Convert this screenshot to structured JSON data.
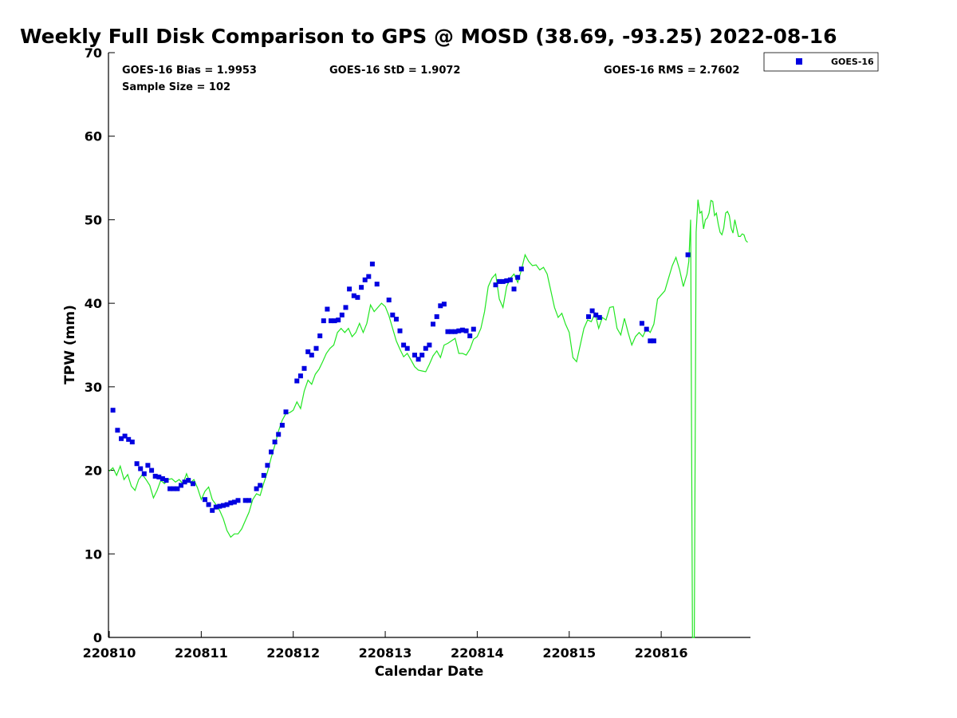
{
  "chart_data": {
    "type": "scatter",
    "title": "Weekly Full Disk Comparison to GPS @ MOSD (38.69, -93.25) 2022-08-16",
    "xlabel": "Calendar Date",
    "ylabel": "TPW (mm)",
    "xlim": [
      0,
      6.97
    ],
    "ylim": [
      0,
      70
    ],
    "x_tick_values": [
      0,
      1,
      2,
      3,
      4,
      5,
      6
    ],
    "x_tick_labels": [
      "220810",
      "220811",
      "220812",
      "220813",
      "220814",
      "220815",
      "220816"
    ],
    "y_ticks": [
      0,
      10,
      20,
      30,
      40,
      50,
      60,
      70
    ],
    "y_tick_labels": [
      "0",
      "10",
      "20",
      "30",
      "40",
      "50",
      "60",
      "70"
    ],
    "stats": {
      "bias": "GOES-16 Bias = 1.9953",
      "std": "GOES-16 StD = 1.9072",
      "rms": "GOES-16 RMS = 2.7602",
      "sample": "Sample Size = 102"
    },
    "legend": {
      "label": "GOES-16",
      "position": "top-right-outside"
    },
    "colors": {
      "goes": "#0000e0",
      "gps": "#22e622",
      "axis": "#000000"
    },
    "series": [
      {
        "name": "GOES-16",
        "style": "markers",
        "points": [
          [
            0.04,
            27.2
          ],
          [
            0.09,
            24.8
          ],
          [
            0.13,
            23.8
          ],
          [
            0.17,
            24.1
          ],
          [
            0.21,
            23.7
          ],
          [
            0.25,
            23.4
          ],
          [
            0.3,
            20.8
          ],
          [
            0.34,
            20.2
          ],
          [
            0.38,
            19.6
          ],
          [
            0.42,
            20.6
          ],
          [
            0.46,
            20.0
          ],
          [
            0.5,
            19.3
          ],
          [
            0.54,
            19.2
          ],
          [
            0.58,
            19.0
          ],
          [
            0.62,
            18.8
          ],
          [
            0.66,
            17.8
          ],
          [
            0.7,
            17.8
          ],
          [
            0.74,
            17.8
          ],
          [
            0.78,
            18.2
          ],
          [
            0.82,
            18.6
          ],
          [
            0.86,
            18.8
          ],
          [
            0.91,
            18.4
          ],
          [
            1.04,
            16.5
          ],
          [
            1.08,
            15.9
          ],
          [
            1.12,
            15.2
          ],
          [
            1.16,
            15.6
          ],
          [
            1.2,
            15.7
          ],
          [
            1.24,
            15.8
          ],
          [
            1.28,
            15.9
          ],
          [
            1.32,
            16.1
          ],
          [
            1.36,
            16.2
          ],
          [
            1.4,
            16.4
          ],
          [
            1.48,
            16.4
          ],
          [
            1.52,
            16.4
          ],
          [
            1.6,
            17.8
          ],
          [
            1.64,
            18.2
          ],
          [
            1.68,
            19.4
          ],
          [
            1.72,
            20.6
          ],
          [
            1.76,
            22.2
          ],
          [
            1.8,
            23.4
          ],
          [
            1.84,
            24.3
          ],
          [
            1.88,
            25.4
          ],
          [
            1.92,
            27.0
          ],
          [
            2.04,
            30.7
          ],
          [
            2.08,
            31.3
          ],
          [
            2.12,
            32.2
          ],
          [
            2.16,
            34.2
          ],
          [
            2.2,
            33.8
          ],
          [
            2.25,
            34.6
          ],
          [
            2.29,
            36.1
          ],
          [
            2.33,
            37.9
          ],
          [
            2.37,
            39.3
          ],
          [
            2.41,
            37.9
          ],
          [
            2.45,
            37.9
          ],
          [
            2.49,
            38.0
          ],
          [
            2.53,
            38.6
          ],
          [
            2.57,
            39.5
          ],
          [
            2.61,
            41.7
          ],
          [
            2.66,
            40.9
          ],
          [
            2.7,
            40.7
          ],
          [
            2.74,
            41.9
          ],
          [
            2.78,
            42.8
          ],
          [
            2.82,
            43.2
          ],
          [
            2.86,
            44.7
          ],
          [
            2.91,
            42.3
          ],
          [
            3.04,
            40.4
          ],
          [
            3.08,
            38.6
          ],
          [
            3.12,
            38.1
          ],
          [
            3.16,
            36.7
          ],
          [
            3.2,
            35.0
          ],
          [
            3.24,
            34.6
          ],
          [
            3.32,
            33.8
          ],
          [
            3.36,
            33.3
          ],
          [
            3.4,
            33.8
          ],
          [
            3.44,
            34.6
          ],
          [
            3.48,
            35.0
          ],
          [
            3.52,
            37.5
          ],
          [
            3.56,
            38.4
          ],
          [
            3.6,
            39.7
          ],
          [
            3.64,
            39.9
          ],
          [
            3.68,
            36.6
          ],
          [
            3.72,
            36.6
          ],
          [
            3.76,
            36.6
          ],
          [
            3.8,
            36.7
          ],
          [
            3.84,
            36.8
          ],
          [
            3.88,
            36.7
          ],
          [
            3.92,
            36.1
          ],
          [
            3.96,
            36.9
          ],
          [
            4.2,
            42.2
          ],
          [
            4.24,
            42.6
          ],
          [
            4.28,
            42.6
          ],
          [
            4.32,
            42.7
          ],
          [
            4.36,
            42.8
          ],
          [
            4.4,
            41.7
          ],
          [
            4.44,
            43.1
          ],
          [
            4.48,
            44.1
          ],
          [
            5.21,
            38.4
          ],
          [
            5.25,
            39.1
          ],
          [
            5.29,
            38.6
          ],
          [
            5.33,
            38.3
          ],
          [
            5.79,
            37.6
          ],
          [
            5.84,
            36.9
          ],
          [
            5.88,
            35.5
          ],
          [
            5.92,
            35.5
          ],
          [
            6.29,
            45.8
          ]
        ]
      },
      {
        "name": "GPS",
        "style": "line",
        "points": [
          [
            0.0,
            19.9
          ],
          [
            0.04,
            20.3
          ],
          [
            0.08,
            19.4
          ],
          [
            0.12,
            20.5
          ],
          [
            0.16,
            18.9
          ],
          [
            0.2,
            19.5
          ],
          [
            0.24,
            18.1
          ],
          [
            0.28,
            17.6
          ],
          [
            0.32,
            18.9
          ],
          [
            0.36,
            19.5
          ],
          [
            0.4,
            18.9
          ],
          [
            0.44,
            18.2
          ],
          [
            0.48,
            16.7
          ],
          [
            0.52,
            17.6
          ],
          [
            0.56,
            18.8
          ],
          [
            0.6,
            18.4
          ],
          [
            0.64,
            18.9
          ],
          [
            0.68,
            19.0
          ],
          [
            0.72,
            18.6
          ],
          [
            0.76,
            18.9
          ],
          [
            0.8,
            18.4
          ],
          [
            0.84,
            19.6
          ],
          [
            0.88,
            18.5
          ],
          [
            0.92,
            18.9
          ],
          [
            0.96,
            17.9
          ],
          [
            1.0,
            16.5
          ],
          [
            1.04,
            17.5
          ],
          [
            1.08,
            18.0
          ],
          [
            1.12,
            16.5
          ],
          [
            1.16,
            15.9
          ],
          [
            1.2,
            15.2
          ],
          [
            1.24,
            14.2
          ],
          [
            1.28,
            12.8
          ],
          [
            1.32,
            12.0
          ],
          [
            1.36,
            12.4
          ],
          [
            1.4,
            12.4
          ],
          [
            1.44,
            13.0
          ],
          [
            1.48,
            14.0
          ],
          [
            1.52,
            15.0
          ],
          [
            1.56,
            16.5
          ],
          [
            1.6,
            17.2
          ],
          [
            1.64,
            17.0
          ],
          [
            1.68,
            18.5
          ],
          [
            1.72,
            19.8
          ],
          [
            1.76,
            21.5
          ],
          [
            1.8,
            23.0
          ],
          [
            1.84,
            24.7
          ],
          [
            1.88,
            26.0
          ],
          [
            1.92,
            26.8
          ],
          [
            1.96,
            26.9
          ],
          [
            2.0,
            27.2
          ],
          [
            2.04,
            28.2
          ],
          [
            2.08,
            27.4
          ],
          [
            2.12,
            29.5
          ],
          [
            2.16,
            30.8
          ],
          [
            2.2,
            30.3
          ],
          [
            2.24,
            31.5
          ],
          [
            2.28,
            32.1
          ],
          [
            2.32,
            33.0
          ],
          [
            2.36,
            34.0
          ],
          [
            2.4,
            34.6
          ],
          [
            2.44,
            35.0
          ],
          [
            2.48,
            36.5
          ],
          [
            2.52,
            37.0
          ],
          [
            2.56,
            36.5
          ],
          [
            2.6,
            37.0
          ],
          [
            2.64,
            36.0
          ],
          [
            2.68,
            36.5
          ],
          [
            2.72,
            37.6
          ],
          [
            2.76,
            36.5
          ],
          [
            2.8,
            37.6
          ],
          [
            2.84,
            39.8
          ],
          [
            2.88,
            39.0
          ],
          [
            2.92,
            39.5
          ],
          [
            2.96,
            40.0
          ],
          [
            3.0,
            39.6
          ],
          [
            3.04,
            38.5
          ],
          [
            3.08,
            37.0
          ],
          [
            3.12,
            35.5
          ],
          [
            3.16,
            34.5
          ],
          [
            3.2,
            33.6
          ],
          [
            3.24,
            34.0
          ],
          [
            3.28,
            33.2
          ],
          [
            3.32,
            32.4
          ],
          [
            3.36,
            32.0
          ],
          [
            3.4,
            31.9
          ],
          [
            3.44,
            31.8
          ],
          [
            3.48,
            32.7
          ],
          [
            3.52,
            33.7
          ],
          [
            3.56,
            34.3
          ],
          [
            3.6,
            33.5
          ],
          [
            3.64,
            35.0
          ],
          [
            3.68,
            35.2
          ],
          [
            3.72,
            35.5
          ],
          [
            3.76,
            35.8
          ],
          [
            3.8,
            34.0
          ],
          [
            3.84,
            34.0
          ],
          [
            3.88,
            33.8
          ],
          [
            3.92,
            34.5
          ],
          [
            3.96,
            35.7
          ],
          [
            4.0,
            36.0
          ],
          [
            4.04,
            37.0
          ],
          [
            4.08,
            39.0
          ],
          [
            4.12,
            42.0
          ],
          [
            4.16,
            43.0
          ],
          [
            4.2,
            43.5
          ],
          [
            4.24,
            40.5
          ],
          [
            4.28,
            39.5
          ],
          [
            4.32,
            42.0
          ],
          [
            4.36,
            43.0
          ],
          [
            4.4,
            43.5
          ],
          [
            4.44,
            42.5
          ],
          [
            4.48,
            44.0
          ],
          [
            4.52,
            45.8
          ],
          [
            4.56,
            45.0
          ],
          [
            4.6,
            44.5
          ],
          [
            4.64,
            44.6
          ],
          [
            4.68,
            44.0
          ],
          [
            4.72,
            44.3
          ],
          [
            4.76,
            43.5
          ],
          [
            4.8,
            41.5
          ],
          [
            4.84,
            39.5
          ],
          [
            4.88,
            38.3
          ],
          [
            4.92,
            38.8
          ],
          [
            4.96,
            37.5
          ],
          [
            5.0,
            36.5
          ],
          [
            5.04,
            33.5
          ],
          [
            5.08,
            33.0
          ],
          [
            5.12,
            35.0
          ],
          [
            5.16,
            37.0
          ],
          [
            5.2,
            38.0
          ],
          [
            5.24,
            37.8
          ],
          [
            5.28,
            38.8
          ],
          [
            5.32,
            37.0
          ],
          [
            5.36,
            38.3
          ],
          [
            5.4,
            38.0
          ],
          [
            5.44,
            39.5
          ],
          [
            5.48,
            39.6
          ],
          [
            5.52,
            37.0
          ],
          [
            5.56,
            36.2
          ],
          [
            5.6,
            38.2
          ],
          [
            5.64,
            36.5
          ],
          [
            5.68,
            35.0
          ],
          [
            5.72,
            36.0
          ],
          [
            5.76,
            36.5
          ],
          [
            5.8,
            36.0
          ],
          [
            5.84,
            37.0
          ],
          [
            5.88,
            36.5
          ],
          [
            5.92,
            37.5
          ],
          [
            5.96,
            40.5
          ],
          [
            6.0,
            41.0
          ],
          [
            6.04,
            41.5
          ],
          [
            6.08,
            43.0
          ],
          [
            6.12,
            44.5
          ],
          [
            6.16,
            45.5
          ],
          [
            6.2,
            44.0
          ],
          [
            6.24,
            42.0
          ],
          [
            6.28,
            43.5
          ],
          [
            6.3,
            45.0
          ],
          [
            6.32,
            50.0
          ],
          [
            6.34,
            0.0
          ],
          [
            6.36,
            0.0
          ],
          [
            6.38,
            48.5
          ],
          [
            6.4,
            52.4
          ],
          [
            6.42,
            50.8
          ],
          [
            6.44,
            51.0
          ],
          [
            6.46,
            48.9
          ],
          [
            6.48,
            50.0
          ],
          [
            6.5,
            50.2
          ],
          [
            6.52,
            50.8
          ],
          [
            6.54,
            52.3
          ],
          [
            6.56,
            52.2
          ],
          [
            6.58,
            50.5
          ],
          [
            6.6,
            50.8
          ],
          [
            6.62,
            49.5
          ],
          [
            6.64,
            48.5
          ],
          [
            6.66,
            48.2
          ],
          [
            6.68,
            49.0
          ],
          [
            6.7,
            50.8
          ],
          [
            6.72,
            51.0
          ],
          [
            6.74,
            50.5
          ],
          [
            6.76,
            49.0
          ],
          [
            6.78,
            48.4
          ],
          [
            6.8,
            50.0
          ],
          [
            6.82,
            49.0
          ],
          [
            6.84,
            48.0
          ],
          [
            6.86,
            48.0
          ],
          [
            6.88,
            48.3
          ],
          [
            6.9,
            48.2
          ],
          [
            6.92,
            47.5
          ],
          [
            6.94,
            47.3
          ]
        ]
      }
    ]
  }
}
